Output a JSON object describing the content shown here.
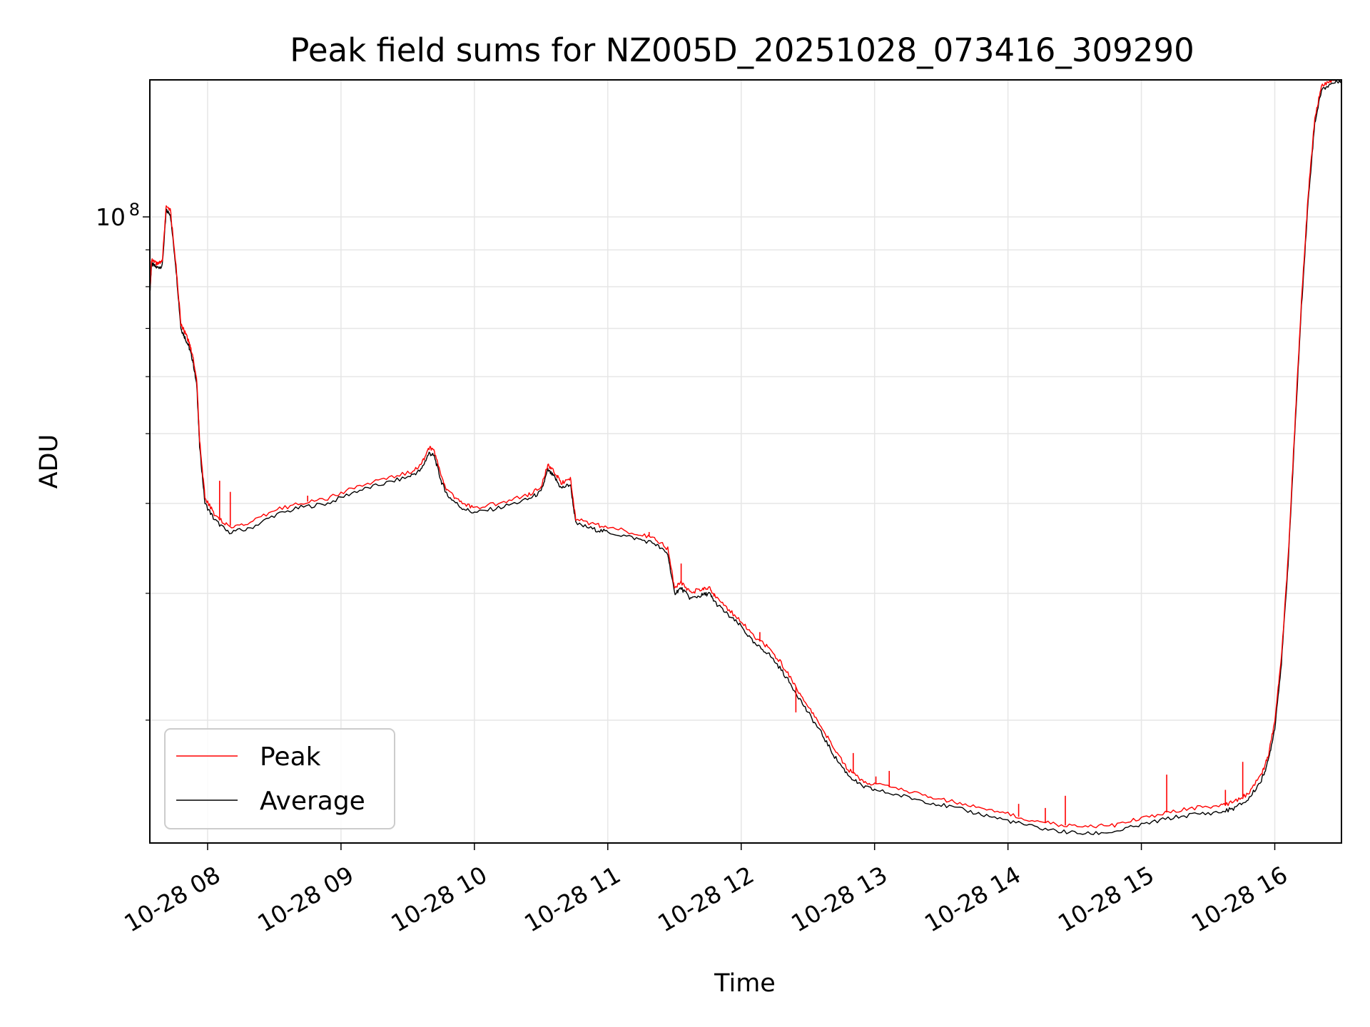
{
  "chart_data": {
    "type": "line",
    "title": "Peak field sums for NZ005D_20251028_073416_309290",
    "xlabel": "Time",
    "ylabel": "ADU",
    "y_scale": "log",
    "ylim": [
      13500000,
      155000000
    ],
    "y_major_ticks": [
      {
        "value": 100000000,
        "base": "10",
        "exp": "8"
      }
    ],
    "y_minor_ticks": [
      20000000,
      30000000,
      40000000,
      50000000,
      60000000,
      70000000,
      80000000,
      90000000
    ],
    "xlim": [
      7.567,
      16.5
    ],
    "x_ticks": [
      {
        "value": 8,
        "label": "10-28 08"
      },
      {
        "value": 9,
        "label": "10-28 09"
      },
      {
        "value": 10,
        "label": "10-28 10"
      },
      {
        "value": 11,
        "label": "10-28 11"
      },
      {
        "value": 12,
        "label": "10-28 12"
      },
      {
        "value": 13,
        "label": "10-28 13"
      },
      {
        "value": 14,
        "label": "10-28 14"
      },
      {
        "value": 15,
        "label": "10-28 15"
      },
      {
        "value": 16,
        "label": "10-28 16"
      }
    ],
    "legend": {
      "position": "lower-left",
      "entries": [
        {
          "name": "Peak",
          "color": "#ff0000"
        },
        {
          "name": "Average",
          "color": "#000000"
        }
      ]
    },
    "series": [
      {
        "name": "Average",
        "color": "#000000",
        "points": [
          [
            7.567,
            78000000
          ],
          [
            7.58,
            86000000
          ],
          [
            7.62,
            85000000
          ],
          [
            7.66,
            85500000
          ],
          [
            7.69,
            102000000
          ],
          [
            7.72,
            101000000
          ],
          [
            7.76,
            86000000
          ],
          [
            7.8,
            70000000
          ],
          [
            7.83,
            68000000
          ],
          [
            7.86,
            66000000
          ],
          [
            7.89,
            63000000
          ],
          [
            7.92,
            58000000
          ],
          [
            7.94,
            48000000
          ],
          [
            7.98,
            40000000
          ],
          [
            8.05,
            38000000
          ],
          [
            8.15,
            36500000
          ],
          [
            8.3,
            36800000
          ],
          [
            8.5,
            38500000
          ],
          [
            8.7,
            39500000
          ],
          [
            8.9,
            40000000
          ],
          [
            9.1,
            41500000
          ],
          [
            9.3,
            42500000
          ],
          [
            9.5,
            43500000
          ],
          [
            9.6,
            44500000
          ],
          [
            9.66,
            47000000
          ],
          [
            9.7,
            46500000
          ],
          [
            9.75,
            43000000
          ],
          [
            9.8,
            41000000
          ],
          [
            9.9,
            39500000
          ],
          [
            10.0,
            38800000
          ],
          [
            10.2,
            39500000
          ],
          [
            10.4,
            40500000
          ],
          [
            10.5,
            41500000
          ],
          [
            10.55,
            44500000
          ],
          [
            10.6,
            43500000
          ],
          [
            10.65,
            42000000
          ],
          [
            10.72,
            42500000
          ],
          [
            10.76,
            37500000
          ],
          [
            10.9,
            36800000
          ],
          [
            11.0,
            36500000
          ],
          [
            11.2,
            35800000
          ],
          [
            11.35,
            35200000
          ],
          [
            11.45,
            34000000
          ],
          [
            11.5,
            30000000
          ],
          [
            11.55,
            30500000
          ],
          [
            11.62,
            29500000
          ],
          [
            11.7,
            29800000
          ],
          [
            11.76,
            30000000
          ],
          [
            11.8,
            29200000
          ],
          [
            11.9,
            28000000
          ],
          [
            12.0,
            27000000
          ],
          [
            12.1,
            25500000
          ],
          [
            12.2,
            24800000
          ],
          [
            12.3,
            23500000
          ],
          [
            12.4,
            22000000
          ],
          [
            12.5,
            20500000
          ],
          [
            12.6,
            19200000
          ],
          [
            12.7,
            17800000
          ],
          [
            12.8,
            16800000
          ],
          [
            12.9,
            16200000
          ],
          [
            13.0,
            16000000
          ],
          [
            13.2,
            15700000
          ],
          [
            13.4,
            15400000
          ],
          [
            13.6,
            15100000
          ],
          [
            13.8,
            14800000
          ],
          [
            14.0,
            14500000
          ],
          [
            14.2,
            14200000
          ],
          [
            14.4,
            14000000
          ],
          [
            14.6,
            13900000
          ],
          [
            14.8,
            14000000
          ],
          [
            15.0,
            14300000
          ],
          [
            15.2,
            14600000
          ],
          [
            15.4,
            14800000
          ],
          [
            15.6,
            14900000
          ],
          [
            15.7,
            15100000
          ],
          [
            15.8,
            15500000
          ],
          [
            15.9,
            16500000
          ],
          [
            15.95,
            17500000
          ],
          [
            16.0,
            19500000
          ],
          [
            16.05,
            24000000
          ],
          [
            16.1,
            33000000
          ],
          [
            16.15,
            50000000
          ],
          [
            16.2,
            75000000
          ],
          [
            16.25,
            105000000
          ],
          [
            16.3,
            135000000
          ],
          [
            16.35,
            150000000
          ],
          [
            16.42,
            153000000
          ],
          [
            16.5,
            155000000
          ]
        ]
      },
      {
        "name": "Peak",
        "color": "#ff0000",
        "points": [
          [
            7.567,
            79000000
          ],
          [
            7.58,
            87000000
          ],
          [
            7.62,
            86000000
          ],
          [
            7.66,
            86500000
          ],
          [
            7.69,
            104000000
          ],
          [
            7.72,
            102500000
          ],
          [
            7.76,
            87000000
          ],
          [
            7.8,
            71000000
          ],
          [
            7.83,
            69000000
          ],
          [
            7.86,
            67000000
          ],
          [
            7.89,
            64000000
          ],
          [
            7.92,
            59000000
          ],
          [
            7.94,
            49000000
          ],
          [
            7.98,
            40800000
          ],
          [
            8.05,
            38700000
          ],
          [
            8.15,
            37200000
          ],
          [
            8.3,
            37400000
          ],
          [
            8.5,
            39100000
          ],
          [
            8.7,
            40100000
          ],
          [
            8.9,
            40600000
          ],
          [
            9.1,
            42100000
          ],
          [
            9.3,
            43100000
          ],
          [
            9.5,
            44100000
          ],
          [
            9.6,
            45200000
          ],
          [
            9.66,
            47800000
          ],
          [
            9.7,
            47200000
          ],
          [
            9.75,
            43700000
          ],
          [
            9.8,
            41600000
          ],
          [
            9.9,
            40100000
          ],
          [
            10.0,
            39400000
          ],
          [
            10.2,
            40100000
          ],
          [
            10.4,
            41100000
          ],
          [
            10.5,
            42100000
          ],
          [
            10.55,
            45200000
          ],
          [
            10.6,
            44200000
          ],
          [
            10.65,
            42700000
          ],
          [
            10.72,
            43200000
          ],
          [
            10.76,
            38100000
          ],
          [
            10.9,
            37400000
          ],
          [
            11.0,
            37100000
          ],
          [
            11.2,
            36400000
          ],
          [
            11.35,
            35800000
          ],
          [
            11.45,
            34600000
          ],
          [
            11.5,
            30600000
          ],
          [
            11.55,
            31100000
          ],
          [
            11.62,
            30100000
          ],
          [
            11.7,
            30400000
          ],
          [
            11.76,
            30600000
          ],
          [
            11.8,
            29800000
          ],
          [
            11.9,
            28500000
          ],
          [
            12.0,
            27500000
          ],
          [
            12.1,
            26000000
          ],
          [
            12.2,
            25300000
          ],
          [
            12.3,
            24000000
          ],
          [
            12.4,
            22400000
          ],
          [
            12.5,
            20900000
          ],
          [
            12.6,
            19600000
          ],
          [
            12.7,
            18200000
          ],
          [
            12.8,
            17100000
          ],
          [
            12.9,
            16500000
          ],
          [
            13.0,
            16300000
          ],
          [
            13.2,
            16000000
          ],
          [
            13.4,
            15700000
          ],
          [
            13.6,
            15400000
          ],
          [
            13.8,
            15100000
          ],
          [
            14.0,
            14800000
          ],
          [
            14.2,
            14500000
          ],
          [
            14.4,
            14300000
          ],
          [
            14.6,
            14200000
          ],
          [
            14.8,
            14300000
          ],
          [
            15.0,
            14600000
          ],
          [
            15.2,
            14900000
          ],
          [
            15.4,
            15100000
          ],
          [
            15.6,
            15200000
          ],
          [
            15.7,
            15400000
          ],
          [
            15.8,
            15800000
          ],
          [
            15.9,
            16800000
          ],
          [
            15.95,
            17800000
          ],
          [
            16.0,
            19900000
          ],
          [
            16.05,
            24500000
          ],
          [
            16.1,
            33600000
          ],
          [
            16.15,
            51000000
          ],
          [
            16.2,
            76500000
          ],
          [
            16.25,
            107000000
          ],
          [
            16.3,
            137000000
          ],
          [
            16.35,
            152000000
          ],
          [
            16.42,
            154500000
          ],
          [
            16.5,
            156000000
          ]
        ],
        "spikes": [
          [
            8.09,
            43000000
          ],
          [
            8.17,
            41500000
          ],
          [
            8.75,
            41000000
          ],
          [
            11.31,
            36500000
          ],
          [
            11.55,
            33000000
          ],
          [
            12.14,
            26500000
          ],
          [
            12.41,
            20500000
          ],
          [
            12.84,
            18000000
          ],
          [
            13.01,
            16700000
          ],
          [
            13.11,
            17000000
          ],
          [
            14.08,
            15300000
          ],
          [
            14.28,
            15100000
          ],
          [
            14.43,
            15700000
          ],
          [
            15.19,
            16800000
          ],
          [
            15.63,
            16000000
          ],
          [
            15.76,
            17500000
          ]
        ]
      }
    ]
  }
}
